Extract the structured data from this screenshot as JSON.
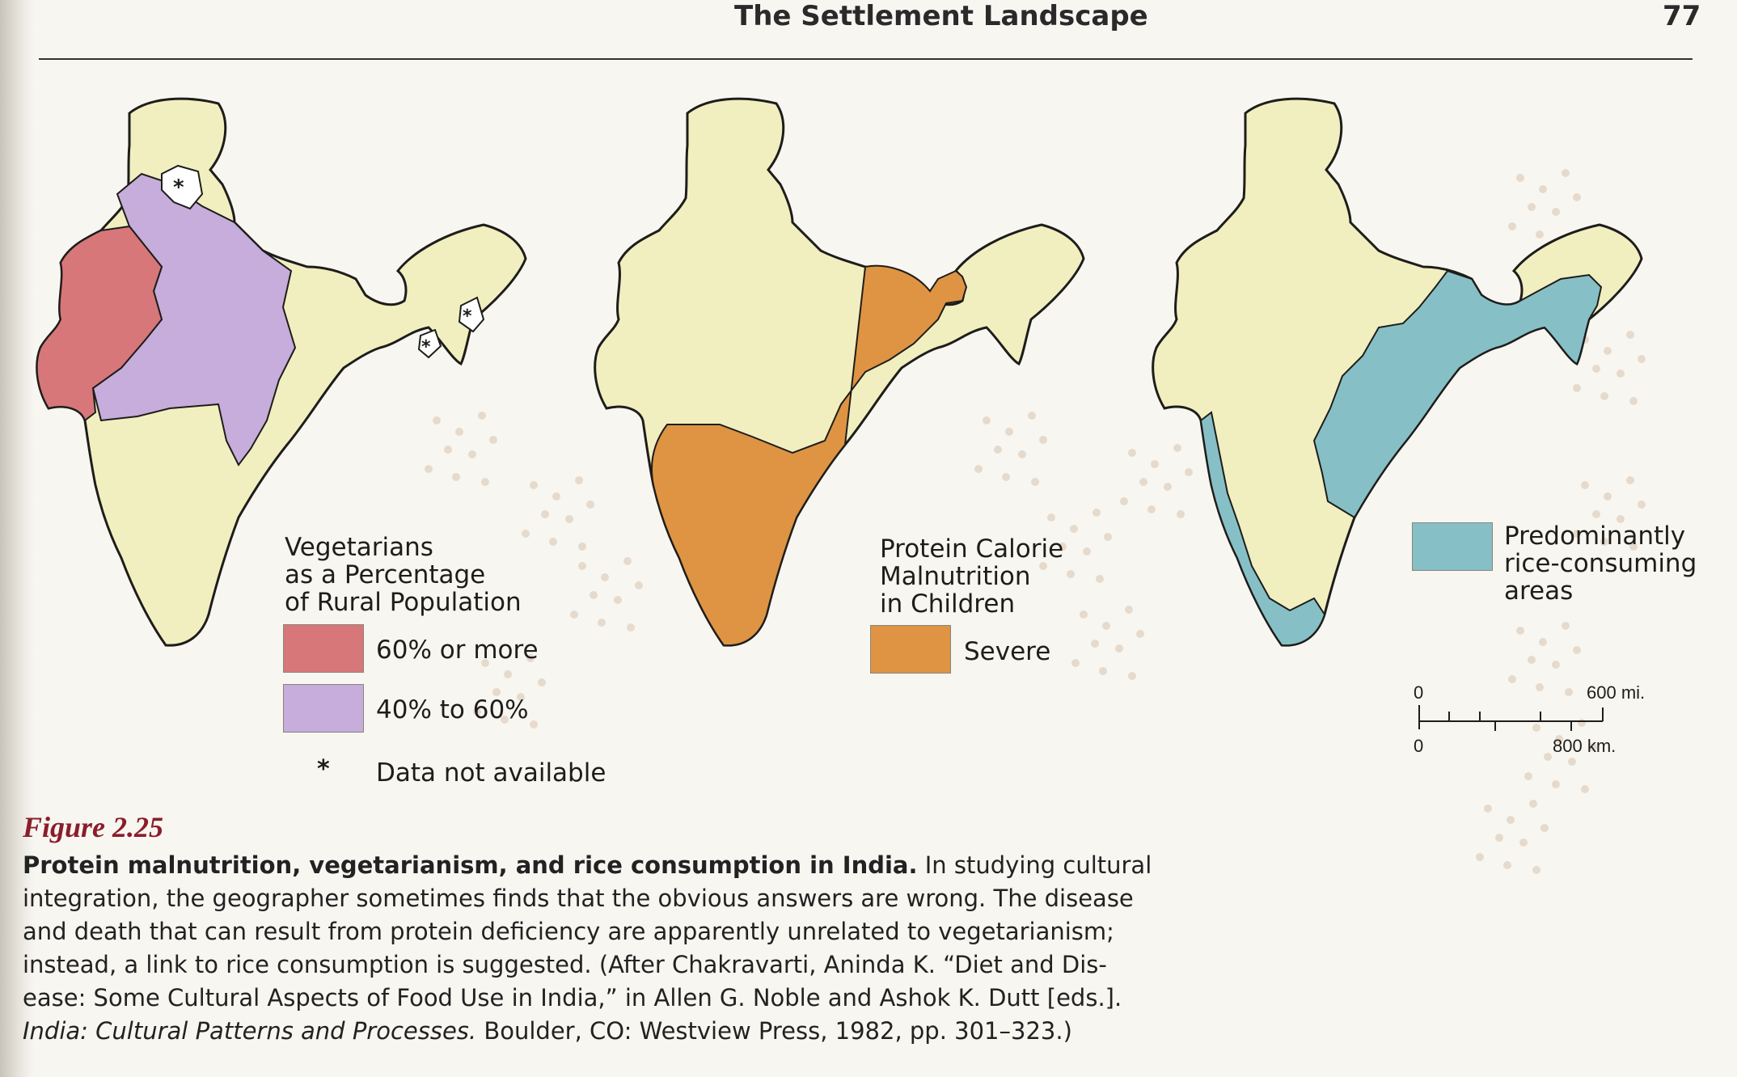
{
  "header": {
    "running_title": "The Settlement Landscape",
    "page_number": "77"
  },
  "map1": {
    "legend_title_lines": [
      "Vegetarians",
      "as a Percentage",
      "of Rural Population"
    ],
    "legend_items": [
      {
        "label": "60% or more",
        "color": "#d7777a"
      },
      {
        "label": "40% to 60%",
        "color": "#c6addb"
      }
    ],
    "na_symbol": "*",
    "na_label": "Data not available",
    "base_color": "#f1efbf"
  },
  "map2": {
    "legend_title_lines": [
      "Protein Calorie",
      "Malnutrition",
      "in Children"
    ],
    "legend_items": [
      {
        "label": "Severe",
        "color": "#de9443"
      }
    ]
  },
  "map3": {
    "legend_title_lines": [
      "Predominantly",
      "rice-consuming",
      "areas"
    ],
    "legend_color": "#86c0c6",
    "scale": {
      "mi_start": "0",
      "mi_end": "600 mi.",
      "km_start": "0",
      "km_end": "800 km."
    }
  },
  "figure": {
    "label": "Figure 2.25",
    "caption_bold": "Protein malnutrition, vegetarianism, and rice consumption in India.",
    "caption_line1_rest": " In studying cultural",
    "caption_lines": [
      "integration, the geographer sometimes finds that the obvious answers are wrong. The disease",
      "and death that can result from protein deficiency are apparently unrelated to vegetarianism;",
      "instead, a link to rice consumption is suggested. (After Chakravarti, Aninda K. “Diet and Dis-",
      "ease: Some Cultural Aspects of Food Use in India,” in Allen G. Noble and Ashok K. Dutt [eds.]."
    ],
    "caption_last_italic": "India: Cultural Patterns and Processes.",
    "caption_last_rest": " Boulder, CO: Westview Press, 1982, pp. 301–323.)"
  }
}
